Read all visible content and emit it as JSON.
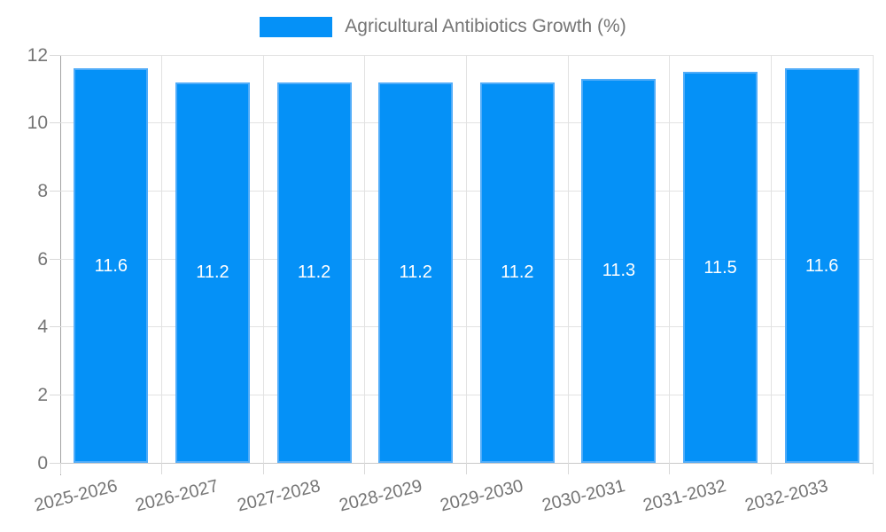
{
  "chart_data": {
    "type": "bar",
    "title": "Agricultural Antibiotics Growth (%)",
    "categories": [
      "2025-2026",
      "2026-2027",
      "2027-2028",
      "2028-2029",
      "2029-2030",
      "2030-2031",
      "2031-2032",
      "2032-2033"
    ],
    "values": [
      11.6,
      11.2,
      11.2,
      11.2,
      11.2,
      11.3,
      11.5,
      11.6
    ],
    "value_labels": [
      "11.6",
      "11.2",
      "11.2",
      "11.2",
      "11.2",
      "11.3",
      "11.5",
      "11.6"
    ],
    "xlabel": "",
    "ylabel": "",
    "ylim": [
      0,
      12
    ],
    "yticks": [
      0,
      2,
      4,
      6,
      8,
      10,
      12
    ],
    "ytick_labels": [
      "0",
      "2",
      "4",
      "6",
      "8",
      "10",
      "12"
    ],
    "grid": true,
    "legend_position": "top",
    "colors": {
      "bar_fill": "#0591f7",
      "bar_border": "#50acf9",
      "value_label": "#ffffff",
      "tick_label": "#757575",
      "legend_text": "#757575",
      "gridline": "#e2e2e2",
      "y_axis_line": "#a3a3a3",
      "x_axis_line": "#c9c9c9"
    }
  }
}
